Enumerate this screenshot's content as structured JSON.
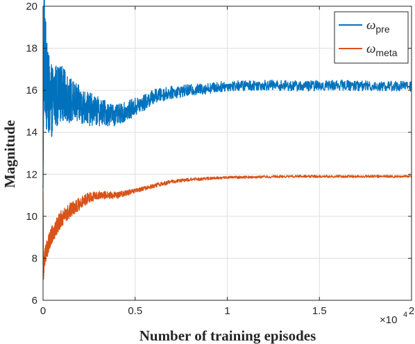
{
  "chart_data": {
    "type": "line",
    "title": "",
    "xlabel": "Number of training episodes",
    "ylabel": "Magnitude",
    "x_multiplier_label": "×10",
    "x_multiplier_exp": "4",
    "xlim": [
      0,
      2
    ],
    "ylim": [
      6,
      20
    ],
    "x_ticks": [
      "0",
      "0.5",
      "1",
      "1.5",
      "2"
    ],
    "y_ticks": [
      "6",
      "8",
      "10",
      "12",
      "14",
      "16",
      "18",
      "20"
    ],
    "grid": true,
    "legend_position": "top-right",
    "series": [
      {
        "name_symbol": "ω",
        "name_sub": "pre",
        "color": "#0072BD",
        "x": [
          0,
          0.005,
          0.01,
          0.02,
          0.04,
          0.06,
          0.1,
          0.15,
          0.2,
          0.25,
          0.3,
          0.35,
          0.4,
          0.45,
          0.5,
          0.55,
          0.6,
          0.7,
          0.8,
          0.9,
          1.0,
          1.2,
          1.4,
          1.6,
          1.8,
          2.0
        ],
        "values": [
          11.3,
          18.6,
          17.5,
          16.2,
          15.4,
          15.7,
          15.9,
          15.5,
          15.3,
          15.1,
          15.0,
          14.9,
          14.8,
          15.0,
          15.2,
          15.4,
          15.7,
          15.9,
          16.0,
          16.1,
          16.2,
          16.25,
          16.2,
          16.25,
          16.2,
          16.2
        ],
        "noise": [
          0,
          2.4,
          2.6,
          2.2,
          1.8,
          1.6,
          1.3,
          1.1,
          0.9,
          0.8,
          0.7,
          0.6,
          0.5,
          0.45,
          0.45,
          0.4,
          0.35,
          0.3,
          0.28,
          0.26,
          0.25,
          0.25,
          0.25,
          0.25,
          0.25,
          0.25
        ]
      },
      {
        "name_symbol": "ω",
        "name_sub": "meta",
        "color": "#D95319",
        "x": [
          0,
          0.003,
          0.008,
          0.02,
          0.05,
          0.1,
          0.15,
          0.2,
          0.25,
          0.3,
          0.35,
          0.4,
          0.5,
          0.6,
          0.7,
          0.8,
          0.9,
          1.0,
          1.2,
          1.4,
          1.6,
          1.8,
          2.0
        ],
        "values": [
          11.2,
          7.3,
          8.0,
          8.4,
          9.2,
          9.9,
          10.3,
          10.6,
          10.9,
          11.0,
          11.0,
          11.0,
          11.2,
          11.45,
          11.65,
          11.75,
          11.8,
          11.85,
          11.88,
          11.9,
          11.9,
          11.9,
          11.9
        ],
        "noise": [
          0,
          0.3,
          0.4,
          0.45,
          0.45,
          0.4,
          0.35,
          0.3,
          0.25,
          0.2,
          0.18,
          0.15,
          0.12,
          0.1,
          0.09,
          0.08,
          0.07,
          0.06,
          0.06,
          0.06,
          0.06,
          0.06,
          0.06
        ]
      }
    ]
  }
}
